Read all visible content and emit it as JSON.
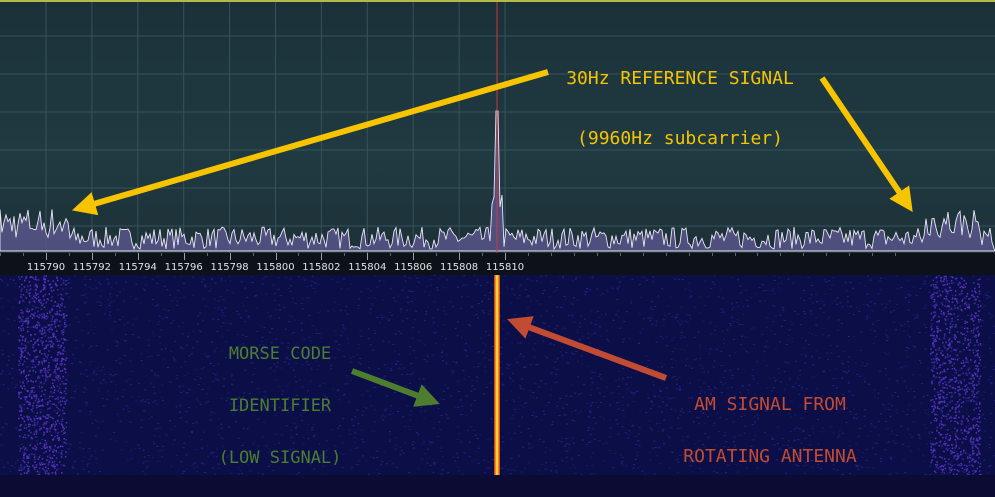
{
  "colors": {
    "spectrum_bg": "#1e363d",
    "spectrum_fill": "#5c5790",
    "spectrum_line": "#e9e7f6",
    "waterfall_bg": "#0c0f47",
    "center_marker": "#c83a3a",
    "carrier_trace": "#ffcf33",
    "reference_color": "#f6c400",
    "morse_color": "#4d7d2e",
    "am_color": "#c24b33"
  },
  "frequency_axis": {
    "ticks": [
      "115790",
      "115792",
      "115794",
      "115796",
      "115798",
      "115800",
      "115802",
      "115804",
      "115806",
      "115808",
      "115810"
    ]
  },
  "annotations": {
    "reference_signal": {
      "line1": "30Hz REFERENCE SIGNAL",
      "line2": "(9960Hz subcarrier)"
    },
    "morse": {
      "line1": "MORSE CODE",
      "line2": "IDENTIFIER",
      "line3": "(LOW SIGNAL)"
    },
    "am_signal": {
      "line1": "AM SIGNAL FROM",
      "line2": "ROTATING ANTENNA"
    }
  },
  "icons": {
    "ref_arrows": "arrow-icon",
    "morse_arrow": "arrow-icon",
    "am_arrow": "arrow-icon"
  }
}
